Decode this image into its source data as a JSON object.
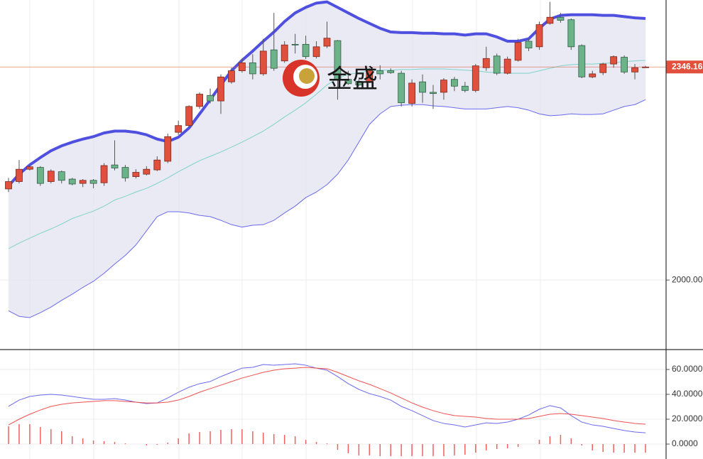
{
  "chart_data": [
    {
      "type": "candlestick",
      "categories": [
        null,
        null,
        null,
        null,
        null,
        null,
        null,
        null,
        null,
        null,
        null,
        null,
        null,
        null,
        null,
        null,
        null,
        null,
        null,
        null,
        null,
        null,
        null,
        null,
        null,
        null,
        null,
        null,
        null,
        null,
        null,
        null,
        null,
        null,
        null,
        null,
        null,
        null,
        null,
        null,
        null,
        null,
        null,
        null,
        null,
        null,
        null,
        null,
        null,
        null,
        null,
        null,
        null,
        null,
        null,
        null,
        null,
        null,
        null,
        null,
        null
      ],
      "open": [
        2148,
        2160,
        2180,
        2183,
        2160,
        2176,
        2164,
        2157,
        2162,
        2158,
        2187,
        2183,
        2168,
        2172,
        2179,
        2193,
        2240,
        2251,
        2282,
        2300,
        2291,
        2322,
        2340,
        2353,
        2335,
        2374,
        2356,
        2383,
        2383,
        2363,
        2380,
        2389,
        2326,
        2323,
        2322,
        2340,
        2340,
        2336,
        2287,
        2322,
        2305,
        2305,
        2326,
        2315,
        2308,
        2345,
        2364,
        2336,
        2357,
        2388,
        2379,
        2417,
        2427,
        2423,
        2381,
        2330,
        2337,
        2351,
        2362,
        2338,
        2345
      ],
      "high": [
        2166,
        2195,
        2187,
        2185,
        2180,
        2178,
        2166,
        2164,
        2164,
        2190,
        2227,
        2187,
        2180,
        2185,
        2201,
        2238,
        2259,
        2284,
        2305,
        2311,
        2334,
        2345,
        2360,
        2367,
        2392,
        2434,
        2388,
        2400,
        2397,
        2388,
        2420,
        2390,
        2340,
        2326,
        2344,
        2349,
        2344,
        2340,
        2326,
        2334,
        2317,
        2328,
        2330,
        2322,
        2351,
        2379,
        2368,
        2363,
        2392,
        2392,
        2420,
        2452,
        2434,
        2425,
        2383,
        2340,
        2353,
        2365,
        2365,
        2351,
        2348
      ],
      "low": [
        2143,
        2157,
        2178,
        2153,
        2157,
        2157,
        2154,
        2151,
        2149,
        2153,
        2178,
        2160,
        2165,
        2170,
        2177,
        2190,
        2236,
        2248,
        2278,
        2287,
        2270,
        2319,
        2337,
        2326,
        2332,
        2340,
        2353,
        2368,
        2359,
        2360,
        2377,
        2293,
        2317,
        2315,
        2320,
        2326,
        2335,
        2282,
        2282,
        2288,
        2278,
        2293,
        2307,
        2305,
        2305,
        2340,
        2333,
        2334,
        2355,
        2372,
        2374,
        2415,
        2418,
        2374,
        2328,
        2328,
        2333,
        2345,
        2335,
        2326,
        2345
      ],
      "close": [
        2160,
        2180,
        2184,
        2157,
        2177,
        2162,
        2156,
        2162,
        2157,
        2186,
        2182,
        2166,
        2175,
        2180,
        2195,
        2233,
        2251,
        2282,
        2302,
        2291,
        2330,
        2340,
        2353,
        2335,
        2372,
        2344,
        2382,
        2382,
        2363,
        2379,
        2393,
        2326,
        2319,
        2317,
        2340,
        2335,
        2337,
        2288,
        2320,
        2305,
        2303,
        2325,
        2315,
        2308,
        2348,
        2360,
        2336,
        2359,
        2386,
        2377,
        2415,
        2427,
        2422,
        2379,
        2330,
        2335,
        2351,
        2363,
        2338,
        2345,
        2346.16
      ],
      "up_color": "#e0503c",
      "down_color": "#6db38a",
      "upper_band": {
        "color": "#5050e0",
        "values": [
          2153,
          2172,
          2187,
          2199,
          2210,
          2218,
          2224,
          2229,
          2233,
          2239,
          2242,
          2242,
          2240,
          2236,
          2229,
          2225,
          2232,
          2247,
          2270,
          2293,
          2317,
          2340,
          2357,
          2372,
          2388,
          2403,
          2420,
          2434,
          2443,
          2450,
          2452,
          2443,
          2434,
          2425,
          2417,
          2409,
          2403,
          2402,
          2402,
          2401,
          2401,
          2400,
          2400,
          2398,
          2400,
          2400,
          2395,
          2388,
          2388,
          2392,
          2409,
          2424,
          2430,
          2431,
          2431,
          2431,
          2430,
          2430,
          2428,
          2426,
          2425
        ]
      },
      "middle_band": {
        "color": "#7fd3c8",
        "values": [
          2051,
          2060,
          2068,
          2076,
          2083,
          2091,
          2100,
          2106,
          2112,
          2120,
          2130,
          2136,
          2143,
          2149,
          2157,
          2166,
          2176,
          2185,
          2194,
          2201,
          2208,
          2216,
          2224,
          2233,
          2242,
          2253,
          2265,
          2276,
          2288,
          2302,
          2317,
          2328,
          2334,
          2337,
          2340,
          2341,
          2341,
          2342,
          2342,
          2343,
          2343,
          2343,
          2342,
          2341,
          2340,
          2338,
          2337,
          2336,
          2336,
          2336,
          2340,
          2344,
          2348,
          2350,
          2351,
          2351,
          2352,
          2353,
          2355,
          2356,
          2357
        ]
      },
      "lower_band": {
        "color": "#6a6af0",
        "values": [
          1950,
          1941,
          1939,
          1947,
          1956,
          1967,
          1977,
          1988,
          1998,
          2011,
          2026,
          2040,
          2057,
          2080,
          2103,
          2111,
          2111,
          2109,
          2105,
          2103,
          2097,
          2090,
          2086,
          2089,
          2090,
          2097,
          2109,
          2120,
          2134,
          2143,
          2155,
          2172,
          2195,
          2224,
          2253,
          2270,
          2282,
          2284,
          2285,
          2285,
          2283,
          2282,
          2280,
          2278,
          2278,
          2278,
          2280,
          2282,
          2280,
          2276,
          2270,
          2267,
          2268,
          2270,
          2269,
          2269,
          2270,
          2276,
          2282,
          2285,
          2293
        ]
      },
      "band_fill": "#e6e6f2",
      "last_price": 2346.16,
      "last_price_color": "#e0503c",
      "ylim": [
        1887,
        2455
      ],
      "yticks": [
        {
          "value": 2000,
          "label": "2000.00"
        }
      ],
      "grid": true,
      "watermark": "金盛"
    },
    {
      "type": "macd",
      "categories": [
        null,
        null,
        null,
        null,
        null,
        null,
        null,
        null,
        null,
        null,
        null,
        null,
        null,
        null,
        null,
        null,
        null,
        null,
        null,
        null,
        null,
        null,
        null,
        null,
        null,
        null,
        null,
        null,
        null,
        null,
        null,
        null,
        null,
        null,
        null,
        null,
        null,
        null,
        null,
        null,
        null,
        null,
        null,
        null,
        null,
        null,
        null,
        null,
        null,
        null,
        null,
        null,
        null,
        null,
        null,
        null,
        null,
        null,
        null,
        null,
        null
      ],
      "series": [
        {
          "color": "#6a6aee",
          "values": [
            30.3,
            35.4,
            38.3,
            39.4,
            40.0,
            39.4,
            38.3,
            37.1,
            36.0,
            36.0,
            36.6,
            35.4,
            33.7,
            32.6,
            33.1,
            37.1,
            41.7,
            45.7,
            48.6,
            50.3,
            54.3,
            57.7,
            61.1,
            61.7,
            64.0,
            63.4,
            64.0,
            64.6,
            63.4,
            61.1,
            59.4,
            54.3,
            48.6,
            44.0,
            40.6,
            38.3,
            35.4,
            30.3,
            26.9,
            22.9,
            18.9,
            16.6,
            15.4,
            13.7,
            15.4,
            17.1,
            16.6,
            17.7,
            20.0,
            23.4,
            28.0,
            30.9,
            29.1,
            22.9,
            17.7,
            15.4,
            14.3,
            12.6,
            10.9,
            9.7,
            9.1
          ]
        },
        {
          "color": "#f05050",
          "values": [
            15.4,
            20.0,
            24.0,
            27.4,
            30.3,
            32.0,
            33.1,
            33.7,
            34.3,
            34.9,
            34.9,
            34.3,
            33.7,
            33.1,
            33.1,
            33.7,
            35.4,
            38.3,
            41.7,
            44.6,
            47.4,
            50.3,
            53.1,
            55.4,
            57.7,
            59.4,
            60.6,
            61.1,
            61.7,
            61.1,
            60.6,
            57.7,
            54.3,
            50.9,
            48.0,
            44.6,
            41.1,
            37.1,
            33.1,
            29.7,
            26.9,
            24.6,
            22.9,
            22.3,
            21.7,
            20.6,
            20.0,
            20.0,
            20.0,
            20.6,
            22.3,
            24.0,
            24.6,
            24.0,
            22.9,
            21.7,
            20.6,
            18.9,
            17.7,
            16.6,
            16.0
          ]
        }
      ],
      "histogram": {
        "color": "#f06060",
        "values": [
          14.3,
          16.0,
          16.0,
          13.7,
          12.0,
          10.3,
          6.3,
          4.6,
          2.9,
          2.3,
          1.7,
          0.6,
          0,
          -1.1,
          -0.6,
          1.1,
          4.6,
          8.6,
          9.7,
          10.3,
          11.4,
          12.0,
          12.0,
          10.3,
          9.1,
          8.0,
          7.4,
          6.3,
          3.4,
          1.7,
          0.6,
          -4.6,
          -7.4,
          -9.1,
          -9.1,
          -9.7,
          -9.7,
          -9.7,
          -9.7,
          -9.7,
          -9.7,
          -9.7,
          -9.1,
          -8.6,
          -6.9,
          -5.1,
          -4.0,
          -3.4,
          -2.3,
          0,
          3.4,
          6.3,
          7.4,
          4.6,
          -1.1,
          -5.1,
          -6.3,
          -6.9,
          -6.9,
          -6.9,
          -6.9
        ]
      },
      "ylim": [
        -12,
        76
      ],
      "yticks": [
        {
          "value": 0,
          "label": "0.0000"
        },
        {
          "value": 20,
          "label": "20.0000"
        },
        {
          "value": 40,
          "label": "40.0000"
        },
        {
          "value": 60,
          "label": "60.0000"
        }
      ],
      "grid": true
    }
  ]
}
